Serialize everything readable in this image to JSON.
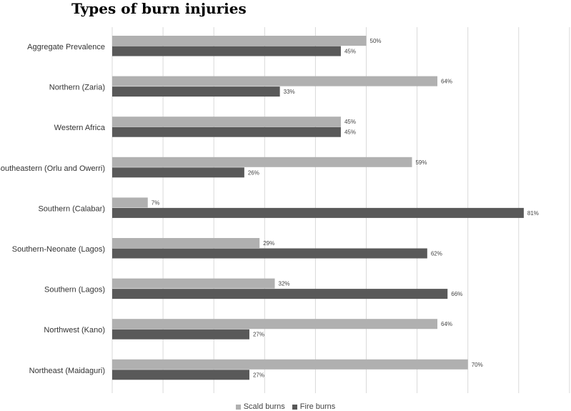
{
  "chart_data": {
    "type": "bar",
    "orientation": "horizontal",
    "title": "Types of burn injuries",
    "categories": [
      "Aggregate Prevalence",
      "Northern (Zaria)",
      "Western Africa",
      "Southeastern (Orlu and Owerri)",
      "Southern (Calabar)",
      "Southern-Neonate (Lagos)",
      "Southern (Lagos)",
      "Northwest (Kano)",
      "Northeast (Maidaguri)"
    ],
    "series": [
      {
        "name": "Scald burns",
        "color": "#b0b0b0",
        "values": [
          50,
          64,
          45,
          59,
          7,
          29,
          32,
          64,
          70
        ]
      },
      {
        "name": "Fire burns",
        "color": "#595959",
        "values": [
          45,
          33,
          45,
          26,
          81,
          62,
          66,
          27,
          27
        ]
      }
    ],
    "data_labels": {
      "Scald burns": [
        "50%",
        "64%",
        "45%",
        "59%",
        "7%",
        "29%",
        "32%",
        "64%",
        "70%"
      ],
      "Fire burns": [
        "45%",
        "33%",
        "45%",
        "26%",
        "81%",
        "62%",
        "66%",
        "27%",
        "27%"
      ]
    },
    "xlim": [
      0,
      90
    ],
    "grid": true,
    "legend": "bottom"
  }
}
